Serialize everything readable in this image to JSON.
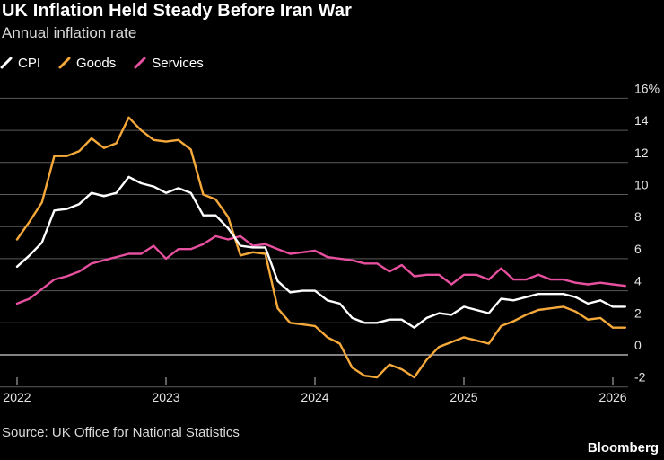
{
  "header": {
    "title": "UK Inflation Held Steady Before Iran War",
    "subtitle": "Annual inflation rate"
  },
  "footer": {
    "source": "Source: UK Office for National Statistics",
    "brand": "Bloomberg"
  },
  "colors": {
    "background": "#000000",
    "grid": "#5a5a5a",
    "zero_line": "#d0d0d0",
    "cpi": "#ffffff",
    "goods": "#f6a93b",
    "services": "#e6509f"
  },
  "chart_data": {
    "type": "line",
    "title": "UK Inflation Held Steady Before Iran War",
    "subtitle": "Annual inflation rate",
    "xlabel": "",
    "ylabel": "",
    "x_start": "2022-01",
    "x_tick_labels": [
      "2022",
      "2023",
      "2024",
      "2025",
      "2026"
    ],
    "y_tick_labels": [
      "-2",
      "0",
      "2",
      "4",
      "6",
      "8",
      "10",
      "12",
      "14",
      "16%"
    ],
    "ylim": [
      -2,
      16
    ],
    "y_ticks": [
      -2,
      0,
      2,
      4,
      6,
      8,
      10,
      12,
      14,
      16
    ],
    "grid": true,
    "legend_position": "top-left",
    "series": [
      {
        "name": "CPI",
        "color": "#ffffff",
        "values": [
          5.5,
          6.2,
          7.0,
          9.0,
          9.1,
          9.4,
          10.1,
          9.9,
          10.1,
          11.1,
          10.7,
          10.5,
          10.1,
          10.4,
          10.1,
          8.7,
          8.7,
          7.9,
          6.8,
          6.7,
          6.7,
          4.6,
          3.9,
          4.0,
          4.0,
          3.4,
          3.2,
          2.3,
          2.0,
          2.0,
          2.2,
          2.2,
          1.7,
          2.3,
          2.6,
          2.5,
          3.0,
          2.8,
          2.6,
          3.5,
          3.4,
          3.6,
          3.8,
          3.8,
          3.8,
          3.6,
          3.2,
          3.4,
          3.0,
          3.0
        ]
      },
      {
        "name": "Goods",
        "color": "#f6a93b",
        "values": [
          7.2,
          8.3,
          9.5,
          12.4,
          12.4,
          12.7,
          13.5,
          12.9,
          13.2,
          14.8,
          14.0,
          13.4,
          13.3,
          13.4,
          12.8,
          10.0,
          9.7,
          8.6,
          6.2,
          6.4,
          6.3,
          2.9,
          2.0,
          1.9,
          1.8,
          1.1,
          0.7,
          -0.8,
          -1.3,
          -1.4,
          -0.6,
          -0.9,
          -1.4,
          -0.3,
          0.5,
          0.8,
          1.1,
          0.9,
          0.7,
          1.8,
          2.1,
          2.5,
          2.8,
          2.9,
          3.0,
          2.7,
          2.2,
          2.3,
          1.7,
          1.7
        ]
      },
      {
        "name": "Services",
        "color": "#e6509f",
        "values": [
          3.2,
          3.5,
          4.1,
          4.7,
          4.9,
          5.2,
          5.7,
          5.9,
          6.1,
          6.3,
          6.3,
          6.8,
          6.0,
          6.6,
          6.6,
          6.9,
          7.4,
          7.2,
          7.4,
          6.8,
          6.9,
          6.6,
          6.3,
          6.4,
          6.5,
          6.1,
          6.0,
          5.9,
          5.7,
          5.7,
          5.2,
          5.6,
          4.9,
          5.0,
          5.0,
          4.4,
          5.0,
          5.0,
          4.7,
          5.4,
          4.7,
          4.7,
          5.0,
          4.7,
          4.7,
          4.5,
          4.4,
          4.5,
          4.4,
          4.3
        ]
      }
    ]
  }
}
